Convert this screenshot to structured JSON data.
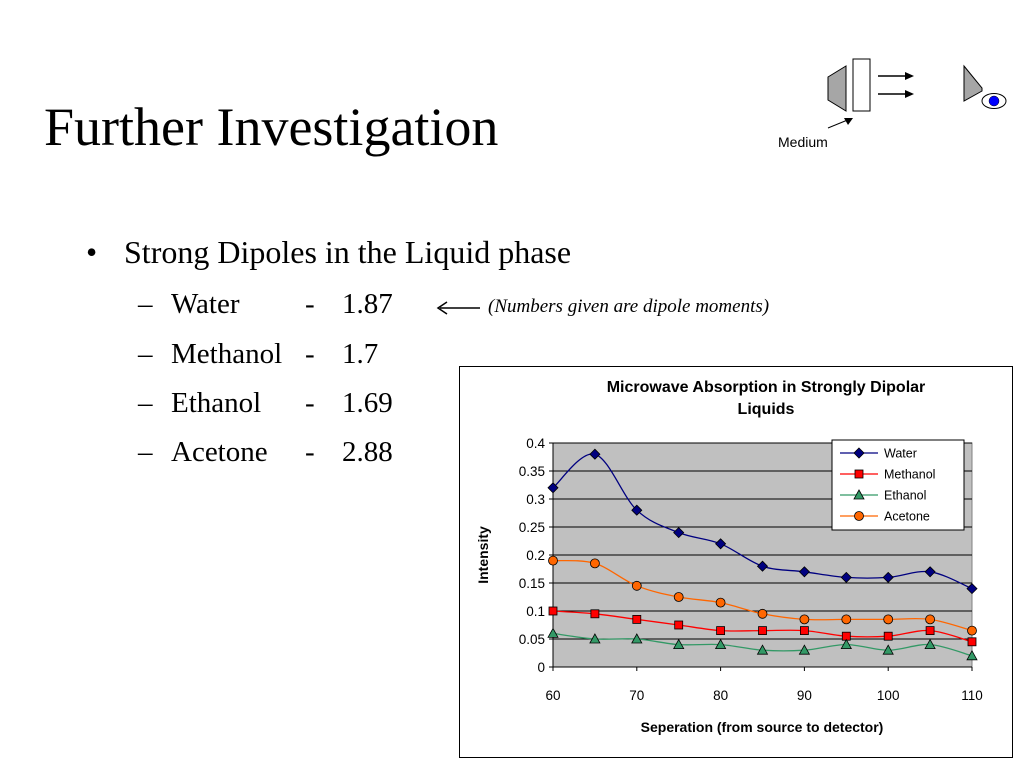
{
  "slide": {
    "title": "Further Investigation",
    "bullet_symbol": "•",
    "bullet": "Strong Dipoles in the Liquid phase",
    "items": [
      {
        "dash": "–",
        "name": "Water",
        "sep": "-",
        "value": "1.87"
      },
      {
        "dash": "–",
        "name": "Methanol",
        "sep": "-",
        "value": "1.7"
      },
      {
        "dash": "–",
        "name": "Ethanol",
        "sep": "-",
        "value": "1.69"
      },
      {
        "dash": "–",
        "name": "Acetone",
        "sep": "-",
        "value": "2.88"
      }
    ],
    "note": "(Numbers given are dipole moments)"
  },
  "diagram": {
    "label": "Medium",
    "icons": [
      "source-horn-icon",
      "medium-slab-icon",
      "wave-arrows-icon",
      "detector-horn-icon",
      "eye-icon"
    ]
  },
  "chart_data": {
    "type": "line",
    "title": "Microwave Absorption in Strongly Dipolar Liquids",
    "title_lines": [
      "Microwave Absorption in Strongly Dipolar",
      "Liquids"
    ],
    "xlabel": "Seperation (from source to detector)",
    "ylabel": "Intensity",
    "x": [
      60,
      65,
      70,
      75,
      80,
      85,
      90,
      95,
      100,
      105,
      110
    ],
    "xlim": [
      60,
      110
    ],
    "ylim": [
      0,
      0.4
    ],
    "xticks": [
      "60",
      "70",
      "80",
      "90",
      "100",
      "110"
    ],
    "yticks": [
      "0",
      "0.05",
      "0.1",
      "0.15",
      "0.2",
      "0.25",
      "0.3",
      "0.35",
      "0.4"
    ],
    "grid": true,
    "legend_position": "top-right",
    "plot_background": "#c0c0c0",
    "series": [
      {
        "name": "Water",
        "color": "#000080",
        "marker": "diamond",
        "values": [
          0.32,
          0.38,
          0.28,
          0.24,
          0.22,
          0.18,
          0.17,
          0.16,
          0.16,
          0.17,
          0.14
        ]
      },
      {
        "name": "Methanol",
        "color": "#ff0000",
        "marker": "square",
        "values": [
          0.1,
          0.095,
          0.085,
          0.075,
          0.065,
          0.065,
          0.065,
          0.055,
          0.055,
          0.065,
          0.045
        ]
      },
      {
        "name": "Ethanol",
        "color": "#339966",
        "marker": "triangle",
        "values": [
          0.06,
          0.05,
          0.05,
          0.04,
          0.04,
          0.03,
          0.03,
          0.04,
          0.03,
          0.04,
          0.02
        ]
      },
      {
        "name": "Acetone",
        "color": "#ff6600",
        "marker": "circle",
        "values": [
          0.19,
          0.185,
          0.145,
          0.125,
          0.115,
          0.095,
          0.085,
          0.085,
          0.085,
          0.085,
          0.065
        ]
      }
    ]
  }
}
